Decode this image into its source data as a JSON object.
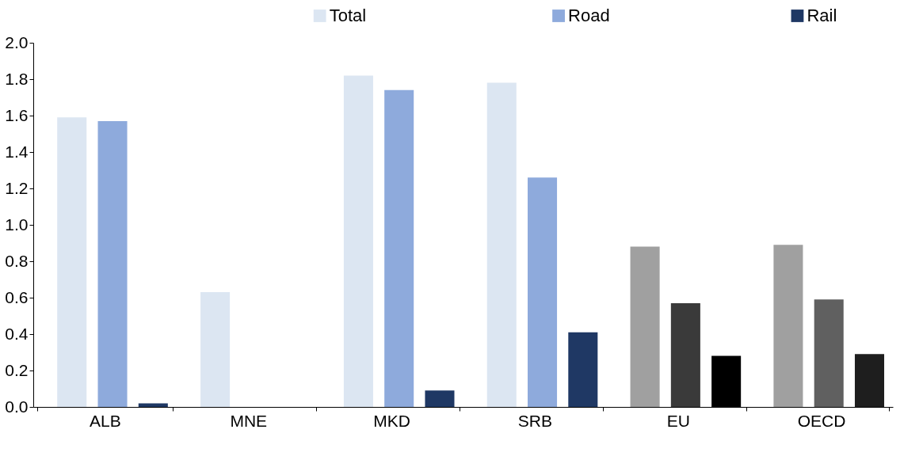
{
  "chart_data": {
    "type": "bar",
    "categories": [
      "ALB",
      "MNE",
      "MKD",
      "SRB",
      "EU",
      "OECD"
    ],
    "series": [
      {
        "name": "Total",
        "color": "#dce6f2",
        "colors": [
          "#dce6f2",
          "#dce6f2",
          "#dce6f2",
          "#dce6f2",
          "#a0a0a0",
          "#a0a0a0"
        ],
        "values": [
          1.59,
          0.63,
          1.82,
          1.78,
          0.88,
          0.89
        ]
      },
      {
        "name": "Road",
        "color": "#8eaadc",
        "colors": [
          "#8eaadc",
          "#8eaadc",
          "#8eaadc",
          "#8eaadc",
          "#3a3a3a",
          "#606060"
        ],
        "values": [
          1.57,
          null,
          1.74,
          1.26,
          0.57,
          0.59
        ]
      },
      {
        "name": "Rail",
        "color": "#1f3864",
        "colors": [
          "#1f3864",
          "#1f3864",
          "#1f3864",
          "#1f3864",
          "#000000",
          "#1e1e1e"
        ],
        "values": [
          0.02,
          null,
          0.09,
          0.41,
          0.28,
          0.29
        ]
      }
    ],
    "ylim": [
      0,
      2.0
    ],
    "yticks": [
      {
        "value": 0,
        "label": "0.0"
      },
      {
        "value": 0.2,
        "label": "0.2"
      },
      {
        "value": 0.4,
        "label": "0.4"
      },
      {
        "value": 0.6,
        "label": "0.6"
      },
      {
        "value": 0.8,
        "label": "0.8"
      },
      {
        "value": 1.0,
        "label": "1.0"
      },
      {
        "value": 1.2,
        "label": "1.2"
      },
      {
        "value": 1.4,
        "label": "1.4"
      },
      {
        "value": 1.6,
        "label": "1.6"
      },
      {
        "value": 1.8,
        "label": "1.8"
      },
      {
        "value": 2.0,
        "label": "2.0"
      }
    ],
    "grid": false,
    "legend": "top"
  }
}
